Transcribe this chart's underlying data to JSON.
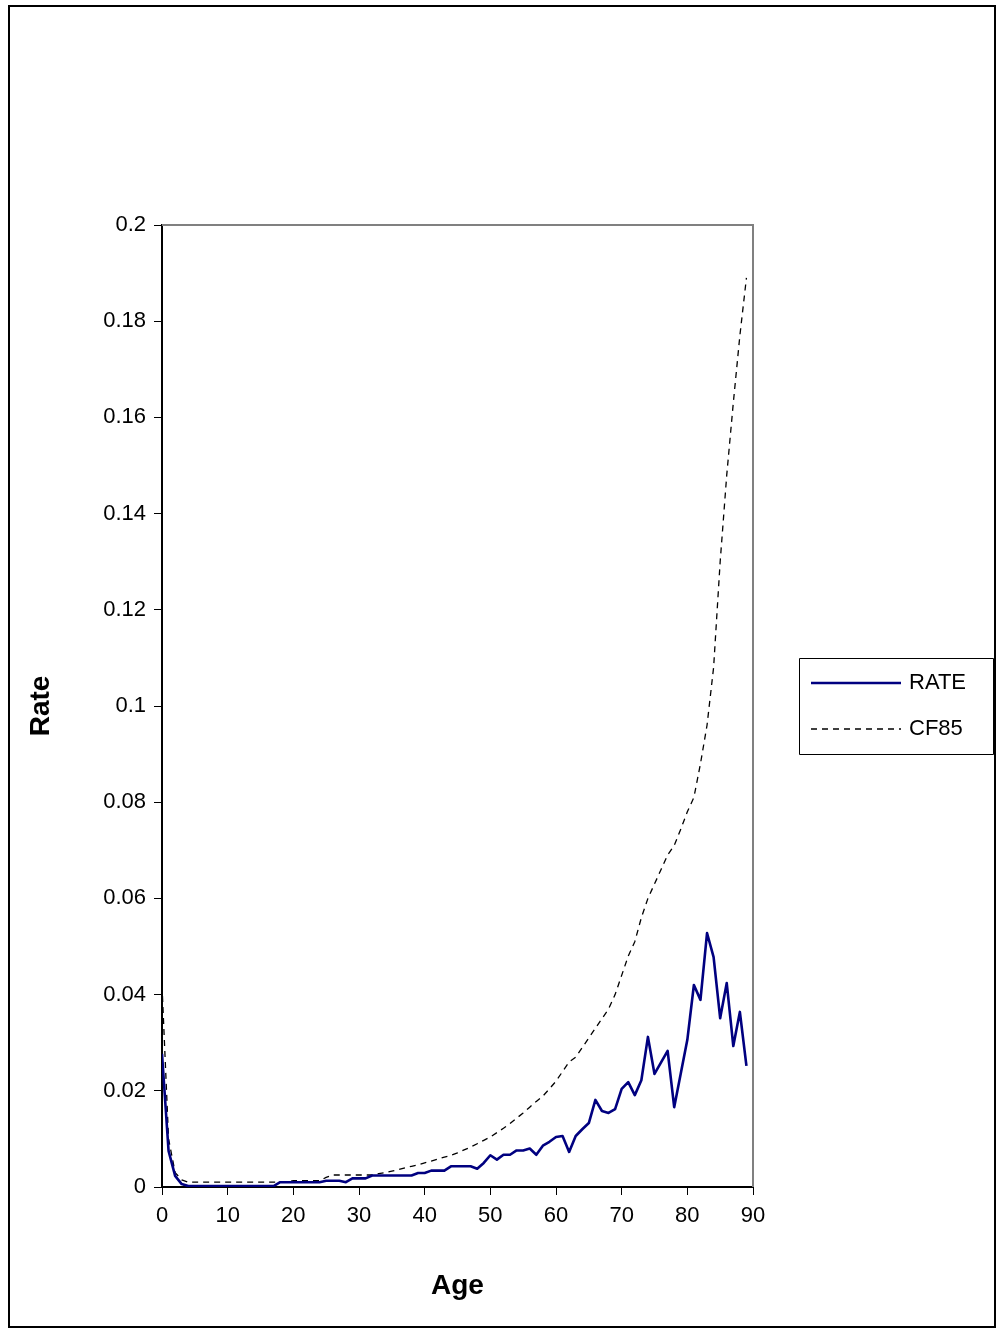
{
  "chart_data": {
    "type": "line",
    "xlabel": "Age",
    "ylabel": "Rate",
    "x": [
      0,
      1,
      2,
      3,
      4,
      5,
      6,
      7,
      8,
      9,
      10,
      11,
      12,
      13,
      14,
      15,
      16,
      17,
      18,
      19,
      20,
      21,
      22,
      23,
      24,
      25,
      26,
      27,
      28,
      29,
      30,
      31,
      32,
      33,
      34,
      35,
      36,
      37,
      38,
      39,
      40,
      41,
      42,
      43,
      44,
      45,
      46,
      47,
      48,
      49,
      50,
      51,
      52,
      53,
      54,
      55,
      56,
      57,
      58,
      59,
      60,
      61,
      62,
      63,
      64,
      65,
      66,
      67,
      68,
      69,
      70,
      71,
      72,
      73,
      74,
      75,
      76,
      77,
      78,
      79,
      80,
      81,
      82,
      83,
      84,
      85,
      86,
      87,
      88,
      89
    ],
    "series": [
      {
        "name": "RATE",
        "color": "#000080",
        "line_style": "solid",
        "values": [
          0.0277,
          0.0075,
          0.0023,
          0.0006,
          0.0002,
          0.0002,
          0.0002,
          0.0002,
          0.0002,
          0.0002,
          0.0002,
          0.0002,
          0.0002,
          0.0002,
          0.0002,
          0.0002,
          0.0002,
          0.0002,
          0.001,
          0.001,
          0.001,
          0.001,
          0.001,
          0.001,
          0.001,
          0.0013,
          0.0013,
          0.0013,
          0.001,
          0.0018,
          0.0018,
          0.0018,
          0.0024,
          0.0024,
          0.0024,
          0.0024,
          0.0024,
          0.0024,
          0.0024,
          0.0029,
          0.0029,
          0.0034,
          0.0034,
          0.0034,
          0.0043,
          0.0043,
          0.0043,
          0.0043,
          0.0038,
          0.005,
          0.0066,
          0.0057,
          0.0067,
          0.0067,
          0.0076,
          0.0076,
          0.008,
          0.0067,
          0.0086,
          0.0094,
          0.0104,
          0.0106,
          0.0073,
          0.0106,
          0.012,
          0.0133,
          0.0181,
          0.0158,
          0.0154,
          0.0162,
          0.0204,
          0.0218,
          0.0191,
          0.0222,
          0.0312,
          0.0235,
          0.0259,
          0.0283,
          0.0166,
          0.0236,
          0.0306,
          0.042,
          0.0389,
          0.0528,
          0.0478,
          0.0351,
          0.0424,
          0.0293,
          0.0364,
          0.0252
        ]
      },
      {
        "name": "CF85",
        "color": "#000000",
        "line_style": "dashed",
        "values": [
          0.042,
          0.01,
          0.003,
          0.0015,
          0.001,
          0.001,
          0.001,
          0.001,
          0.001,
          0.001,
          0.001,
          0.001,
          0.001,
          0.001,
          0.001,
          0.001,
          0.001,
          0.001,
          0.001,
          0.001,
          0.0013,
          0.0013,
          0.0013,
          0.0013,
          0.0013,
          0.002,
          0.0025,
          0.0025,
          0.0025,
          0.0025,
          0.0025,
          0.0025,
          0.0025,
          0.0028,
          0.003,
          0.0033,
          0.0036,
          0.004,
          0.0043,
          0.0046,
          0.005,
          0.0054,
          0.0058,
          0.0062,
          0.0066,
          0.0071,
          0.0077,
          0.0083,
          0.009,
          0.0097,
          0.0104,
          0.0113,
          0.0122,
          0.0132,
          0.0143,
          0.0154,
          0.0166,
          0.0178,
          0.0189,
          0.0204,
          0.022,
          0.024,
          0.026,
          0.027,
          0.029,
          0.031,
          0.033,
          0.035,
          0.037,
          0.04,
          0.044,
          0.048,
          0.051,
          0.056,
          0.06,
          0.063,
          0.066,
          0.069,
          0.071,
          0.0744,
          0.078,
          0.081,
          0.088,
          0.096,
          0.108,
          0.13,
          0.148,
          0.163,
          0.177,
          0.189
        ]
      }
    ],
    "xlim": [
      0,
      90
    ],
    "xticks": [
      0,
      10,
      20,
      30,
      40,
      50,
      60,
      70,
      80,
      90
    ],
    "ylim": [
      0,
      0.2
    ],
    "yticks": [
      0,
      0.02,
      0.04,
      0.06,
      0.08,
      0.1,
      0.12,
      0.14,
      0.16,
      0.18,
      0.2
    ],
    "grid": false,
    "legend": "right",
    "marker": "none"
  }
}
